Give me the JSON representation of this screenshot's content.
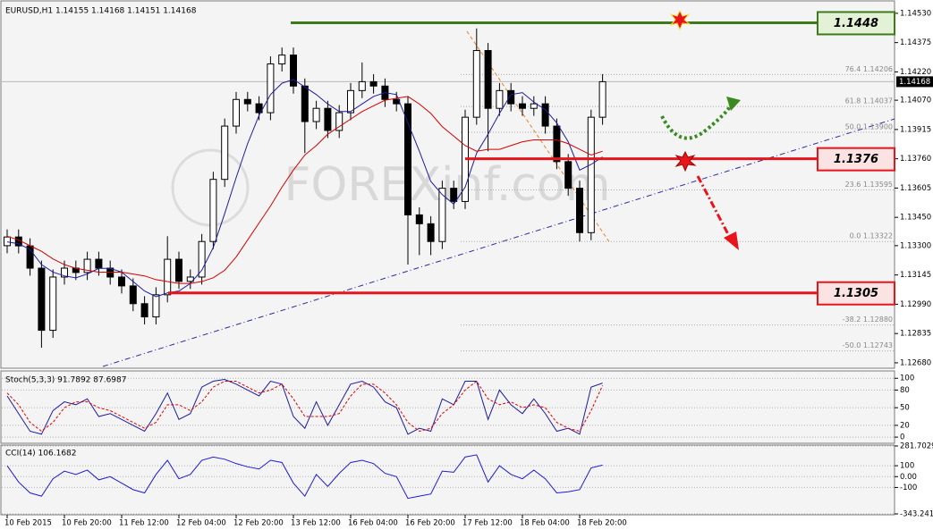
{
  "chart_data": [
    {
      "type": "candlestick",
      "title": "EURUSD,H1  1.14155 1.14168 1.14151 1.14168",
      "watermark": "FOREXinf.com",
      "categories": [
        "10 Feb 2015",
        null,
        null,
        null,
        null,
        "10 Feb 20:00",
        null,
        null,
        null,
        null,
        "11 Feb 12:00",
        null,
        null,
        null,
        null,
        "12 Feb 04:00",
        null,
        null,
        null,
        null,
        "12 Feb 20:00",
        null,
        null,
        null,
        null,
        "13 Feb 12:00",
        null,
        null,
        null,
        null,
        "16 Feb 04:00",
        null,
        null,
        null,
        null,
        "16 Feb 20:00",
        null,
        null,
        null,
        null,
        "17 Feb 12:00",
        null,
        null,
        null,
        null,
        "18 Feb 04:00",
        null,
        null,
        null,
        null,
        "18 Feb 20:00",
        null,
        null
      ],
      "open": [
        1.133,
        1.13346,
        1.13299,
        1.13181,
        1.12852,
        1.13134,
        1.13181,
        1.13158,
        1.13228,
        1.13181,
        1.13134,
        1.13087,
        1.12993,
        1.12923,
        1.1304,
        1.13228,
        1.13111,
        1.13134,
        1.13322,
        1.13651,
        1.13933,
        1.14074,
        1.14051,
        1.14004,
        1.14262,
        1.14309,
        1.14145,
        1.13957,
        1.14027,
        1.1391,
        1.14004,
        1.14121,
        1.14168,
        1.14145,
        1.14074,
        1.14051,
        1.13463,
        1.13416,
        1.13322,
        1.13604,
        1.13534,
        1.1398,
        1.14333,
        1.14027,
        1.14121,
        1.14051,
        1.14027,
        1.14051,
        1.13933,
        1.13745,
        1.13604,
        1.13369,
        1.1398
      ],
      "high": [
        1.13386,
        1.13386,
        1.13339,
        1.13221,
        1.13174,
        1.13221,
        1.13221,
        1.13268,
        1.13268,
        1.13221,
        1.13174,
        1.13127,
        1.13033,
        1.1308,
        1.1335,
        1.13268,
        1.13174,
        1.13362,
        1.13691,
        1.13973,
        1.14114,
        1.14114,
        1.14091,
        1.14302,
        1.14349,
        1.14349,
        1.14185,
        1.14067,
        1.14067,
        1.14044,
        1.14161,
        1.1427,
        1.14208,
        1.14185,
        1.14114,
        1.14091,
        1.13503,
        1.13456,
        1.13644,
        1.13644,
        1.1402,
        1.1445,
        1.14373,
        1.14161,
        1.14161,
        1.14091,
        1.14091,
        1.14091,
        1.13973,
        1.13785,
        1.13644,
        1.1402,
        1.14208
      ],
      "low": [
        1.1326,
        1.13259,
        1.13141,
        1.1276,
        1.12812,
        1.13094,
        1.13118,
        1.13118,
        1.13141,
        1.13094,
        1.13047,
        1.12953,
        1.12883,
        1.12883,
        1.13,
        1.13071,
        1.13071,
        1.13094,
        1.13282,
        1.13611,
        1.13893,
        1.14011,
        1.13964,
        1.13964,
        1.14222,
        1.14105,
        1.1379,
        1.13917,
        1.1387,
        1.1387,
        1.13964,
        1.14081,
        1.14105,
        1.14034,
        1.14011,
        1.132,
        1.1325,
        1.1325,
        1.13282,
        1.13494,
        1.13494,
        1.1394,
        1.138,
        1.13987,
        1.14011,
        1.13987,
        1.13987,
        1.13893,
        1.13705,
        1.13564,
        1.13322,
        1.13329,
        1.1394
      ],
      "close": [
        1.13346,
        1.13299,
        1.13181,
        1.12852,
        1.13134,
        1.13181,
        1.13158,
        1.13228,
        1.13181,
        1.13134,
        1.13087,
        1.12993,
        1.12923,
        1.1304,
        1.13228,
        1.13111,
        1.13134,
        1.13322,
        1.13651,
        1.13933,
        1.14074,
        1.14051,
        1.14004,
        1.14262,
        1.14309,
        1.14145,
        1.13957,
        1.14027,
        1.1391,
        1.14004,
        1.14121,
        1.14168,
        1.14145,
        1.14074,
        1.14051,
        1.13463,
        1.13416,
        1.13322,
        1.13604,
        1.13534,
        1.1398,
        1.14333,
        1.14027,
        1.14121,
        1.14051,
        1.14027,
        1.14051,
        1.13933,
        1.13745,
        1.13604,
        1.13369,
        1.1398,
        1.14168
      ],
      "series": [
        {
          "color": "#1c1ca0",
          "values": [
            1.1332,
            1.1331,
            1.1328,
            1.132,
            1.1316,
            1.1314,
            1.1313,
            1.1315,
            1.1318,
            1.1318,
            1.1316,
            1.1311,
            1.1306,
            1.1303,
            1.1305,
            1.1306,
            1.131,
            1.1317,
            1.1329,
            1.1347,
            1.1366,
            1.1384,
            1.1399,
            1.141,
            1.1416,
            1.1418,
            1.1414,
            1.141,
            1.1405,
            1.1401,
            1.1401,
            1.1405,
            1.1409,
            1.1411,
            1.141,
            1.1395,
            1.138,
            1.1364,
            1.1357,
            1.1352,
            1.1361,
            1.1379,
            1.1389,
            1.14,
            1.141,
            1.1411,
            1.1406,
            1.1402,
            1.1395,
            1.1385,
            1.137,
            1.1373,
            1.1377
          ]
        },
        {
          "color": "#d40000",
          "values": [
            1.1335,
            1.1333,
            1.133,
            1.1327,
            1.1323,
            1.132,
            1.1318,
            1.1317,
            1.1316,
            1.1316,
            1.1316,
            1.1315,
            1.1314,
            1.1312,
            1.1311,
            1.131,
            1.131,
            1.1311,
            1.1313,
            1.1317,
            1.1324,
            1.1333,
            1.1342,
            1.1351,
            1.1361,
            1.137,
            1.1378,
            1.1383,
            1.1389,
            1.1393,
            1.1397,
            1.1401,
            1.1404,
            1.1407,
            1.1408,
            1.1409,
            1.1405,
            1.14,
            1.1393,
            1.1388,
            1.1383,
            1.138,
            1.1381,
            1.1381,
            1.1383,
            1.1385,
            1.1386,
            1.1386,
            1.1386,
            1.1384,
            1.1381,
            1.1378,
            1.138
          ]
        }
      ],
      "ylim": [
        1.12656,
        1.14591
      ],
      "yticks": [
        {
          "value": 1.1453,
          "label": "1.14530"
        },
        1.14375,
        {
          "value": 1.1422,
          "label": "1.14220"
        },
        {
          "value": 1.1407,
          "label": "1.14070"
        },
        1.13915,
        {
          "value": 1.1376,
          "label": "1.13760"
        },
        1.13605,
        {
          "value": 1.1345,
          "label": "1.13450"
        },
        {
          "value": 1.133,
          "label": "1.13300"
        },
        1.13145,
        {
          "value": 1.1299,
          "label": "1.12990"
        },
        1.12835,
        {
          "value": 1.1268,
          "label": "1.12680"
        }
      ],
      "levels": [
        {
          "value": 1.1448,
          "color": "#3d7a1a",
          "fill": "#e3f1d6"
        },
        {
          "value": 1.1376,
          "color": "#e8141b",
          "fill": "#fbe3e3"
        },
        {
          "value": 1.1305,
          "color": "#e8141b",
          "fill": "#fbe3e3"
        }
      ],
      "fibs": [
        {
          "label": "76.4  1.14206",
          "value": 1.14206
        },
        {
          "label": "61.8  1.14037",
          "value": 1.14037
        },
        {
          "label": "50.0  1.13900",
          "value": 1.139
        },
        {
          "label": "23.6  1.13595",
          "value": 1.13595
        },
        {
          "label": "0.0  1.13322",
          "value": 1.13322
        },
        {
          "label": "-38.2  1.12880",
          "value": 1.1288
        },
        {
          "label": "-50.0  1.12743",
          "value": 1.12743
        }
      ]
    },
    {
      "type": "line",
      "title": "Stoch(5,3,3) 91.7892 87.6987",
      "series": [
        {
          "color": "#1c1ca0",
          "values": [
            70,
            40,
            10,
            5,
            45,
            60,
            55,
            65,
            35,
            40,
            30,
            20,
            10,
            40,
            75,
            30,
            40,
            85,
            95,
            98,
            90,
            80,
            70,
            95,
            90,
            35,
            15,
            60,
            20,
            55,
            90,
            95,
            85,
            60,
            50,
            5,
            15,
            10,
            65,
            55,
            95,
            95,
            30,
            80,
            55,
            40,
            65,
            40,
            10,
            15,
            5,
            85,
            91.7892
          ]
        },
        {
          "color": "#e00000",
          "dash": true,
          "values": [
            75,
            55,
            25,
            10,
            25,
            50,
            60,
            60,
            50,
            45,
            35,
            25,
            15,
            25,
            55,
            55,
            45,
            60,
            85,
            95,
            95,
            85,
            75,
            80,
            90,
            65,
            35,
            35,
            35,
            40,
            70,
            90,
            90,
            75,
            55,
            25,
            10,
            15,
            40,
            55,
            80,
            95,
            65,
            55,
            60,
            50,
            55,
            50,
            25,
            15,
            10,
            45,
            87.6987
          ]
        }
      ],
      "ylim": [
        -9,
        111
      ],
      "yticks": [
        100,
        80,
        50,
        20,
        0
      ],
      "grid": true
    },
    {
      "type": "line",
      "title": "CCI(14) 106.1682",
      "series": [
        {
          "color": "#1c1cd0",
          "values": [
            100,
            -50,
            -150,
            -180,
            -20,
            50,
            20,
            60,
            -30,
            0,
            -60,
            -120,
            -150,
            20,
            150,
            -20,
            20,
            150,
            180,
            160,
            120,
            90,
            70,
            150,
            130,
            -60,
            -180,
            20,
            -90,
            30,
            130,
            150,
            120,
            30,
            0,
            -200,
            -180,
            -160,
            50,
            40,
            180,
            200,
            -50,
            100,
            20,
            -20,
            60,
            -20,
            -150,
            -140,
            -120,
            80,
            106.1682
          ]
        }
      ],
      "ylim": [
        -343.2416,
        281.7029
      ],
      "yticks": [
        281.7029,
        100,
        {
          "value": 0,
          "label": "0.00"
        },
        -100,
        -343.2416
      ],
      "grid": true
    }
  ]
}
